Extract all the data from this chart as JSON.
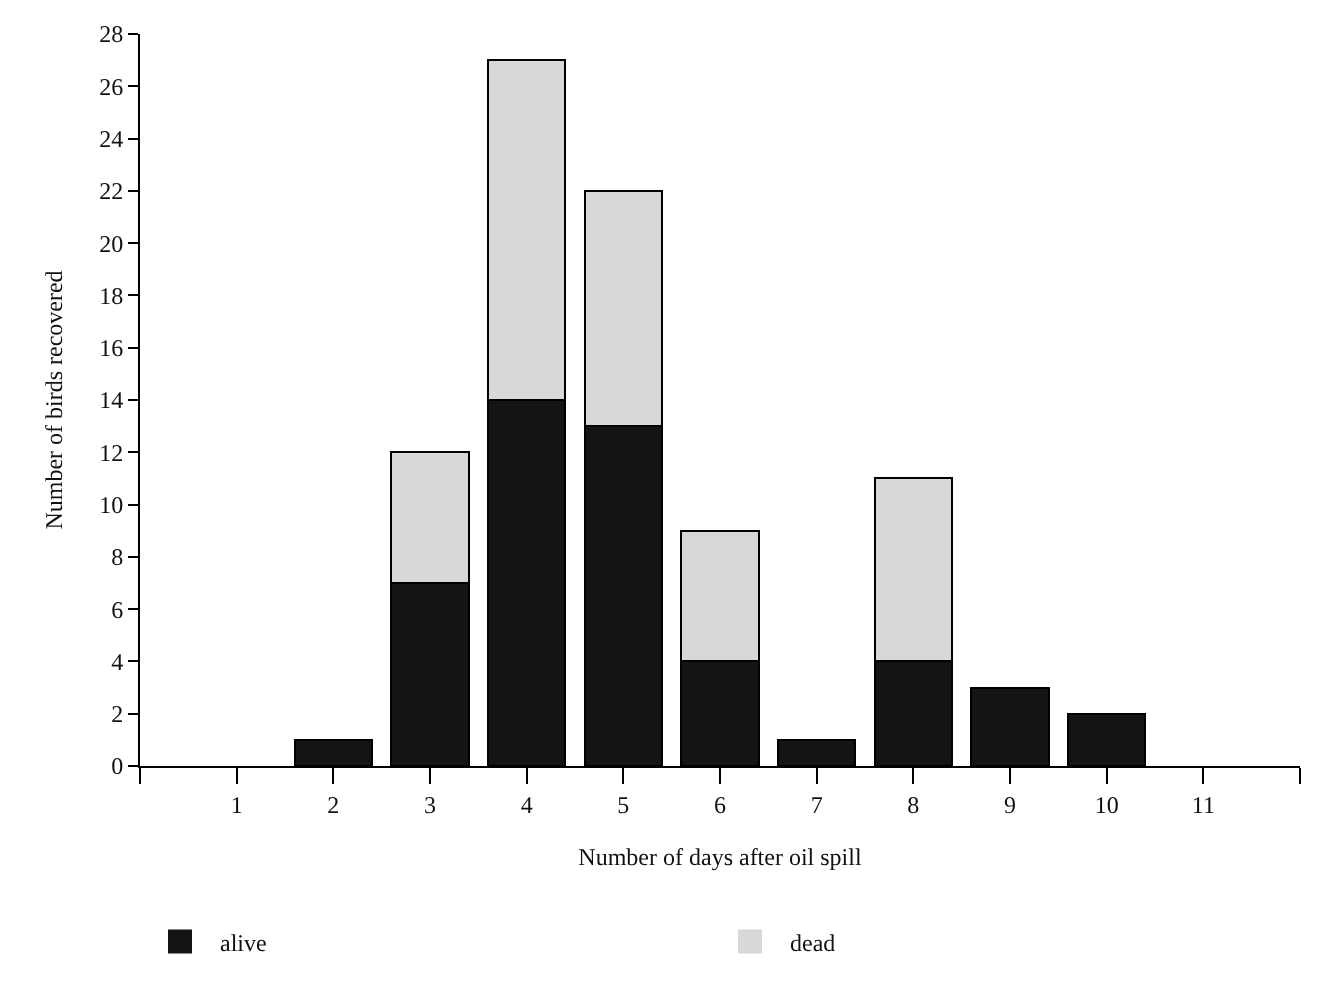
{
  "chart_data": {
    "type": "bar",
    "stacked": true,
    "xlabel": "Number of days after oil spill",
    "ylabel": "Number of birds recovered",
    "x": [
      1,
      2,
      3,
      4,
      5,
      6,
      7,
      8,
      9,
      10,
      11
    ],
    "series": [
      {
        "name": "alive",
        "color": "#141414",
        "values": [
          0,
          1,
          7,
          14,
          13,
          4,
          1,
          4,
          3,
          2,
          0
        ]
      },
      {
        "name": "dead",
        "color": "#d8d8d8",
        "values": [
          0,
          0,
          5,
          13,
          9,
          5,
          0,
          7,
          0,
          0,
          0
        ]
      }
    ],
    "xlim": [
      0,
      12
    ],
    "xticks": [
      {
        "value": 0,
        "label": null
      },
      1,
      2,
      3,
      4,
      5,
      6,
      7,
      8,
      9,
      10,
      11,
      {
        "value": 12,
        "label": null
      }
    ],
    "ylim": [
      0,
      28
    ],
    "yticks": [
      0,
      2,
      4,
      6,
      8,
      10,
      12,
      14,
      16,
      18,
      20,
      22,
      24,
      26,
      28
    ],
    "legend": "bottom"
  }
}
